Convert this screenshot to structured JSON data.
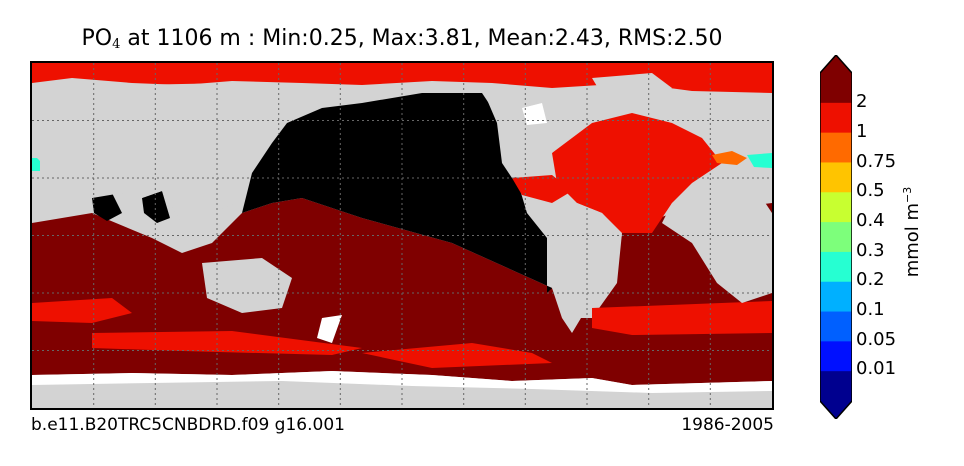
{
  "title": {
    "variable": "PO",
    "subscript": "4",
    "rest": " at 1106 m : Min:0.25, Max:3.81, Mean:2.43, RMS:2.50"
  },
  "caption": {
    "case": "b.e11.B20TRC5CNBDRD.f09 g16.001",
    "years": "1986-2005"
  },
  "colorbar": {
    "units_base": "mmol m",
    "units_exp": "−3",
    "labels": [
      "2",
      "1",
      "0.75",
      "0.5",
      "0.4",
      "0.3",
      "0.2",
      "0.1",
      "0.05",
      "0.01"
    ],
    "colors": [
      "#7f0000",
      "#ee1000",
      "#ff6a00",
      "#ffc400",
      "#c8ff30",
      "#7dff7b",
      "#26ffd2",
      "#00b0ff",
      "#0060ff",
      "#0010ff",
      "#00008f"
    ]
  },
  "map": {
    "land": "#d3d3d3",
    "missing": "#ffffff",
    "black_value": "#000000",
    "red": "#ee1000",
    "dark_red": "#7f0000",
    "orange": "#ff6a00",
    "teal": "#26ffd2",
    "gridline": "#666666"
  }
}
